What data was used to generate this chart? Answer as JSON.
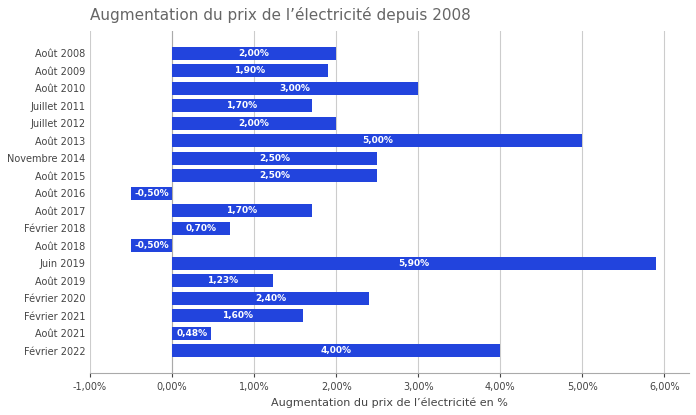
{
  "title": "Augmentation du prix de l’électricité depuis 2008",
  "xlabel": "Augmentation du prix de l’électricité en %",
  "categories": [
    "Août 2008",
    "Août 2009",
    "Août 2010",
    "Juillet 2011",
    "Juillet 2012",
    "Août 2013",
    "Novembre 2014",
    "Août 2015",
    "Août 2016",
    "Août 2017",
    "Février 2018",
    "Août 2018",
    "Juin 2019",
    "Août 2019",
    "Février 2020",
    "Février 2021",
    "Août 2021",
    "Février 2022"
  ],
  "values": [
    2.0,
    1.9,
    3.0,
    1.7,
    2.0,
    5.0,
    2.5,
    2.5,
    -0.5,
    1.7,
    0.7,
    -0.5,
    5.9,
    1.23,
    2.4,
    1.6,
    0.48,
    4.0
  ],
  "labels": [
    "2,00%",
    "1,90%",
    "3,00%",
    "1,70%",
    "2,00%",
    "5,00%",
    "2,50%",
    "2,50%",
    "-0,50%",
    "1,70%",
    "0,70%",
    "-0,50%",
    "5,90%",
    "1,23%",
    "2,40%",
    "1,60%",
    "0,48%",
    "4,00%"
  ],
  "bar_color": "#2244DD",
  "text_color": "#ffffff",
  "title_color": "#666666",
  "axis_label_color": "#444444",
  "tick_color": "#444444",
  "background_color": "#ffffff",
  "xlim": [
    -1.0,
    6.3
  ],
  "xticks": [
    -1.0,
    0.0,
    1.0,
    2.0,
    3.0,
    4.0,
    5.0,
    6.0
  ],
  "xtick_labels": [
    "-1,00%",
    "0,00%",
    "1,00%",
    "2,00%",
    "3,00%",
    "4,00%",
    "5,00%",
    "6,00%"
  ],
  "grid_color": "#cccccc",
  "bar_height": 0.75,
  "title_fontsize": 11,
  "label_fontsize": 6.5,
  "tick_fontsize": 7,
  "xlabel_fontsize": 8
}
